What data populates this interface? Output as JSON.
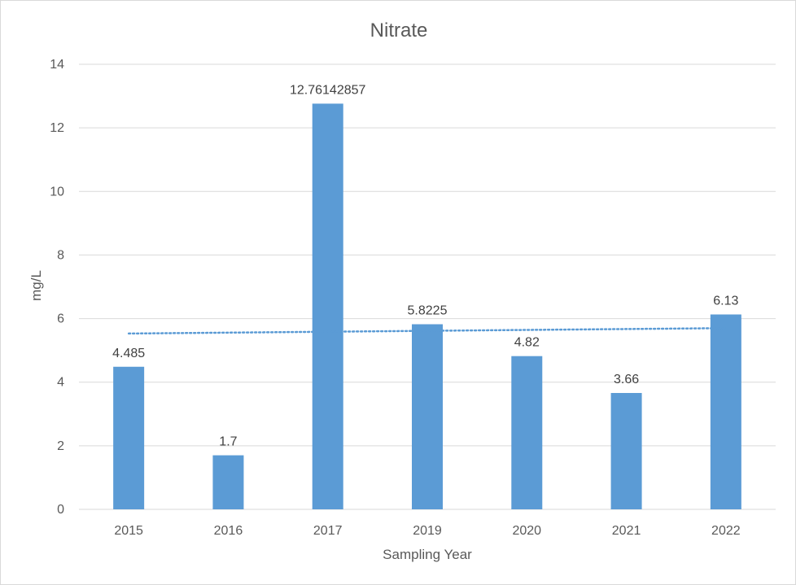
{
  "chart_data": {
    "type": "bar",
    "title": "Nitrate",
    "xlabel": "Sampling Year",
    "ylabel": "mg/L",
    "categories": [
      "2015",
      "2016",
      "2017",
      "2019",
      "2020",
      "2021",
      "2022"
    ],
    "values": [
      4.485,
      1.7,
      12.76142857,
      5.8225,
      4.82,
      3.66,
      6.13
    ],
    "data_labels": [
      "4.485",
      "1.7",
      "12.76142857",
      "5.8225",
      "4.82",
      "3.66",
      "6.13"
    ],
    "ylim": [
      0,
      14
    ],
    "yticks": [
      "0",
      "2",
      "4",
      "6",
      "8",
      "10",
      "12",
      "14"
    ],
    "ytick_values": [
      0,
      2,
      4,
      6,
      8,
      10,
      12,
      14
    ],
    "grid": "horizontal",
    "legend": "none",
    "trendline": {
      "type": "linear",
      "style": "dotted",
      "start": 5.53,
      "end": 5.7
    },
    "colors": {
      "bar": "#5b9bd5",
      "trendline": "#5b9bd5",
      "grid": "#d9d9d9",
      "text": "#595959"
    }
  }
}
